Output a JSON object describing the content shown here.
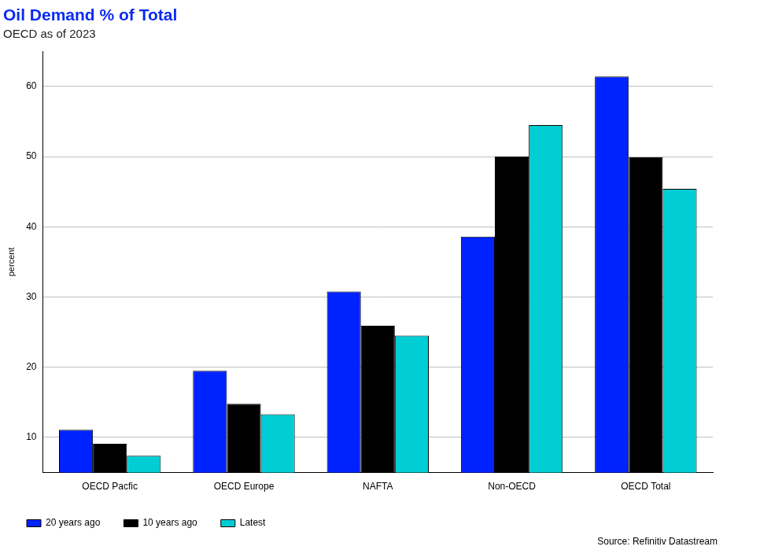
{
  "chart_data": {
    "type": "bar",
    "title": "Oil Demand % of Total",
    "subtitle": "OECD as of 2023",
    "y_label": "percent",
    "source": "Source: Refinitiv Datastream",
    "categories": [
      "OECD Pacfic",
      "OECD Europe",
      "NAFTA",
      "Non-OECD",
      "OECD Total"
    ],
    "series": [
      {
        "name": "20 years ago",
        "color": "#0022ff",
        "values": [
          11.1,
          19.5,
          30.8,
          38.6,
          61.4
        ]
      },
      {
        "name": "10 years ago",
        "color": "#000000",
        "values": [
          9.1,
          14.8,
          25.9,
          50.0,
          49.9
        ]
      },
      {
        "name": "Latest",
        "color": "#00cdd4",
        "values": [
          7.4,
          13.3,
          24.5,
          54.5,
          45.4
        ]
      }
    ],
    "ylim": [
      5,
      65
    ],
    "yticks": [
      10,
      20,
      30,
      40,
      50,
      60
    ],
    "grid": true,
    "legend": "bottom-left"
  }
}
